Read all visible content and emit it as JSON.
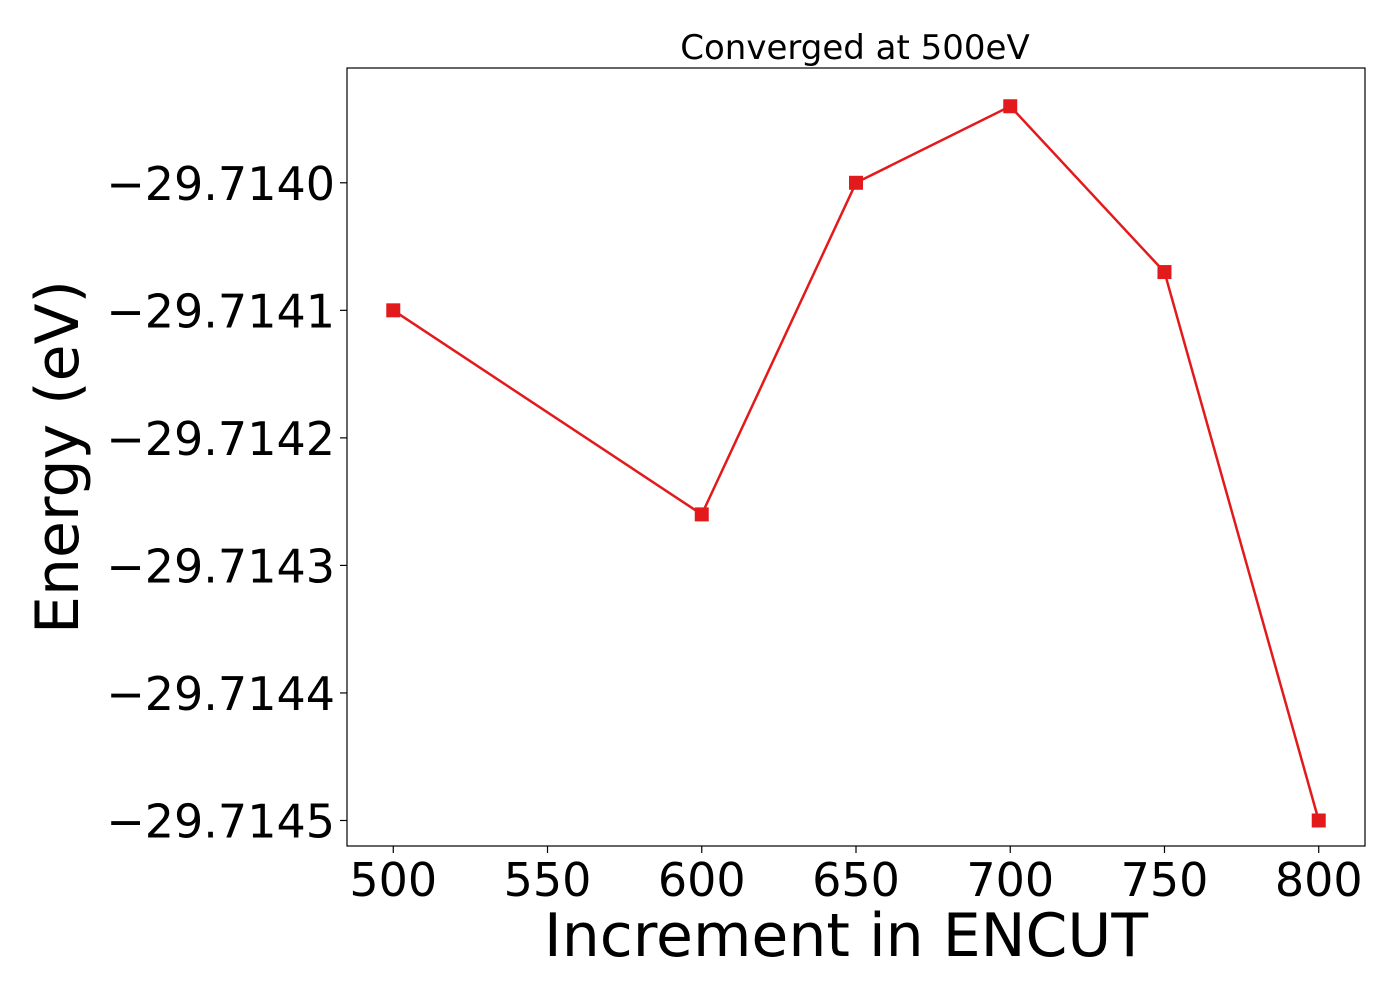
{
  "chart_data": {
    "type": "line",
    "title": "Converged at 500eV",
    "xlabel": "Increment in ENCUT",
    "ylabel": "Energy (eV)",
    "x": [
      500,
      600,
      650,
      700,
      750,
      800
    ],
    "series": [
      {
        "values": [
          -29.7141,
          -29.71426,
          -29.714,
          -29.71394,
          -29.71407,
          -29.7145
        ],
        "color": "#e31a1c",
        "marker": "square"
      }
    ],
    "xticks": [
      500,
      550,
      600,
      650,
      700,
      750,
      800
    ],
    "xtick_labels": [
      "500",
      "550",
      "600",
      "650",
      "700",
      "750",
      "800"
    ],
    "yticks": [
      -29.714,
      -29.7141,
      -29.7142,
      -29.7143,
      -29.7144,
      -29.7145
    ],
    "ytick_labels": [
      "−29.7140",
      "−29.7141",
      "−29.7142",
      "−29.7143",
      "−29.7144",
      "−29.7145"
    ],
    "xlim": [
      485,
      815
    ],
    "ylim": [
      -29.71452,
      -29.71391
    ],
    "grid": false,
    "legend": "none"
  }
}
